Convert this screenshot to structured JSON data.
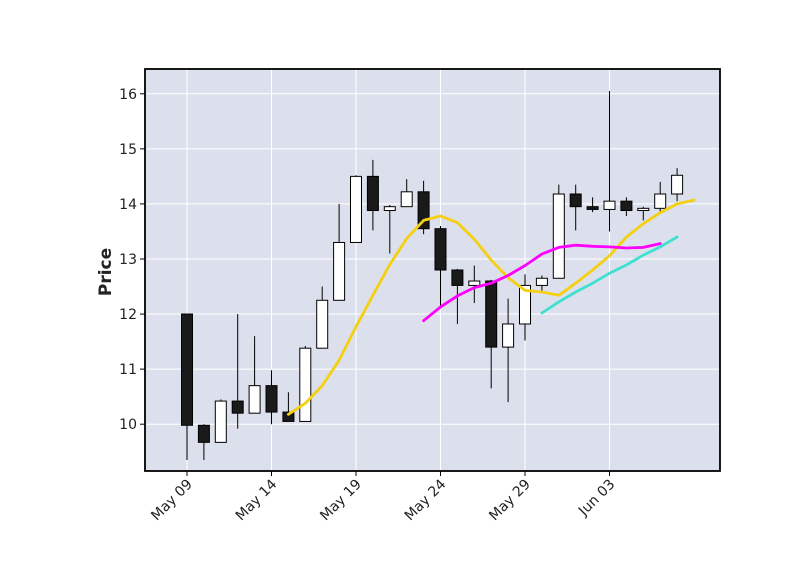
{
  "chart_data": {
    "type": "candlestick",
    "title": "",
    "xlabel": "",
    "ylabel": "Price",
    "ylim": [
      9.15,
      16.45
    ],
    "y_ticks": [
      10,
      11,
      12,
      13,
      14,
      15,
      16
    ],
    "x_ticks": [
      {
        "index": 0,
        "label": "May 09"
      },
      {
        "index": 5,
        "label": "May 14"
      },
      {
        "index": 10,
        "label": "May 19"
      },
      {
        "index": 15,
        "label": "May 24"
      },
      {
        "index": 20,
        "label": "May 29"
      },
      {
        "index": 25,
        "label": "Jun 03"
      }
    ],
    "grid": true,
    "colors": {
      "background": "#dce0ec",
      "grid": "#ffffff",
      "up_fill": "#ffffff",
      "down_fill": "#1a1a1a",
      "edge": "#000000"
    },
    "candles": [
      {
        "open": 12.0,
        "high": 12.0,
        "low": 9.35,
        "close": 9.98
      },
      {
        "open": 9.98,
        "high": 10.0,
        "low": 9.35,
        "close": 9.67
      },
      {
        "open": 9.67,
        "high": 10.45,
        "low": 9.67,
        "close": 10.42
      },
      {
        "open": 10.42,
        "high": 12.0,
        "low": 9.92,
        "close": 10.2
      },
      {
        "open": 10.2,
        "high": 11.6,
        "low": 10.2,
        "close": 10.7
      },
      {
        "open": 10.7,
        "high": 10.98,
        "low": 10.0,
        "close": 10.22
      },
      {
        "open": 10.22,
        "high": 10.58,
        "low": 10.05,
        "close": 10.05
      },
      {
        "open": 10.05,
        "high": 11.42,
        "low": 10.05,
        "close": 11.38
      },
      {
        "open": 11.38,
        "high": 12.5,
        "low": 11.38,
        "close": 12.25
      },
      {
        "open": 12.25,
        "high": 14.0,
        "low": 12.25,
        "close": 13.3
      },
      {
        "open": 13.3,
        "high": 14.52,
        "low": 13.3,
        "close": 14.5
      },
      {
        "open": 14.5,
        "high": 14.8,
        "low": 13.52,
        "close": 13.88
      },
      {
        "open": 13.88,
        "high": 13.98,
        "low": 13.1,
        "close": 13.95
      },
      {
        "open": 13.95,
        "high": 14.45,
        "low": 13.95,
        "close": 14.22
      },
      {
        "open": 14.22,
        "high": 14.42,
        "low": 13.45,
        "close": 13.55
      },
      {
        "open": 13.55,
        "high": 13.6,
        "low": 12.1,
        "close": 12.8
      },
      {
        "open": 12.8,
        "high": 12.82,
        "low": 11.82,
        "close": 12.52
      },
      {
        "open": 12.52,
        "high": 12.88,
        "low": 12.2,
        "close": 12.6
      },
      {
        "open": 12.6,
        "high": 12.62,
        "low": 10.65,
        "close": 11.4
      },
      {
        "open": 11.4,
        "high": 12.28,
        "low": 10.4,
        "close": 11.82
      },
      {
        "open": 11.82,
        "high": 12.72,
        "low": 11.52,
        "close": 12.52
      },
      {
        "open": 12.52,
        "high": 12.7,
        "low": 12.4,
        "close": 12.65
      },
      {
        "open": 12.65,
        "high": 14.35,
        "low": 12.65,
        "close": 14.18
      },
      {
        "open": 14.18,
        "high": 14.35,
        "low": 13.52,
        "close": 13.95
      },
      {
        "open": 13.95,
        "high": 14.12,
        "low": 13.85,
        "close": 13.9
      },
      {
        "open": 13.9,
        "high": 16.05,
        "low": 13.5,
        "close": 14.05
      },
      {
        "open": 14.05,
        "high": 14.12,
        "low": 13.78,
        "close": 13.88
      },
      {
        "open": 13.88,
        "high": 13.95,
        "low": 13.7,
        "close": 13.92
      },
      {
        "open": 13.92,
        "high": 14.4,
        "low": 13.82,
        "close": 14.18
      },
      {
        "open": 14.18,
        "high": 14.65,
        "low": 14.05,
        "close": 14.52
      }
    ],
    "moving_averages": [
      {
        "color": "#f5cf12",
        "start_index": 6,
        "values": [
          10.18,
          10.38,
          10.7,
          11.16,
          11.77,
          12.34,
          12.9,
          13.37,
          13.7,
          13.78,
          13.66,
          13.36,
          12.98,
          12.66,
          12.43,
          12.4,
          12.34,
          12.56,
          12.8,
          13.06,
          13.4,
          13.64,
          13.84,
          14.0,
          14.07
        ]
      },
      {
        "color": "#ff00ff",
        "start_index": 14,
        "values": [
          11.88,
          12.13,
          12.33,
          12.48,
          12.56,
          12.7,
          12.88,
          13.09,
          13.21,
          13.25,
          13.23,
          13.22,
          13.2,
          13.21,
          13.28
        ]
      },
      {
        "color": "#40e0d0",
        "start_index": 21,
        "values": [
          12.02,
          12.22,
          12.4,
          12.56,
          12.74,
          12.89,
          13.07,
          13.22,
          13.4
        ]
      }
    ]
  }
}
